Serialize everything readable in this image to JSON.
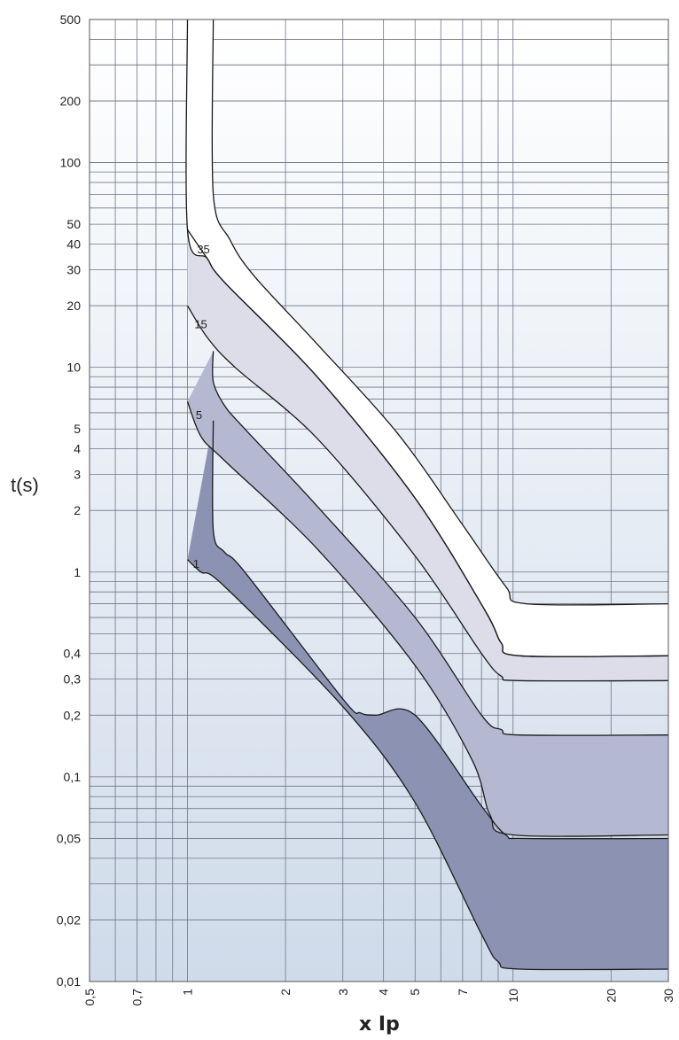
{
  "chart_data": {
    "type": "line",
    "xlabel": "x Ip",
    "ylabel": "t(s)",
    "x_scale": "log",
    "y_scale": "log",
    "xlim": [
      0.5,
      30
    ],
    "ylim": [
      0.01,
      500
    ],
    "grid": true,
    "y_ticks": [
      {
        "v": 500,
        "label": "500"
      },
      {
        "v": 200,
        "label": "200"
      },
      {
        "v": 100,
        "label": "100"
      },
      {
        "v": 50,
        "label": "50"
      },
      {
        "v": 40,
        "label": "40"
      },
      {
        "v": 30,
        "label": "30"
      },
      {
        "v": 20,
        "label": "20"
      },
      {
        "v": 10,
        "label": "10"
      },
      {
        "v": 5,
        "label": "5"
      },
      {
        "v": 4,
        "label": "4"
      },
      {
        "v": 3,
        "label": "3"
      },
      {
        "v": 2,
        "label": "2"
      },
      {
        "v": 1,
        "label": "1"
      },
      {
        "v": 0.4,
        "label": "0,4"
      },
      {
        "v": 0.3,
        "label": "0,3"
      },
      {
        "v": 0.2,
        "label": "0,2"
      },
      {
        "v": 0.1,
        "label": "0,1"
      },
      {
        "v": 0.05,
        "label": "0,05"
      },
      {
        "v": 0.02,
        "label": "0,02"
      },
      {
        "v": 0.01,
        "label": "0,01"
      }
    ],
    "x_ticks": [
      {
        "v": 0.5,
        "label": "0,5"
      },
      {
        "v": 0.7,
        "label": "0,7"
      },
      {
        "v": 1,
        "label": "1"
      },
      {
        "v": 2,
        "label": "2"
      },
      {
        "v": 3,
        "label": "3"
      },
      {
        "v": 4,
        "label": "4"
      },
      {
        "v": 5,
        "label": "5"
      },
      {
        "v": 7,
        "label": "7"
      },
      {
        "v": 10,
        "label": "10"
      },
      {
        "v": 20,
        "label": "20"
      },
      {
        "v": 30,
        "label": "30"
      }
    ],
    "bands": [
      {
        "name": "35",
        "fill": "#ffffff",
        "upper": [
          [
            1.2,
            500
          ],
          [
            1.2,
            70
          ],
          [
            1.35,
            42
          ],
          [
            1.6,
            28
          ],
          [
            2.5,
            13
          ],
          [
            4.4,
            4.8
          ],
          [
            7,
            1.7
          ],
          [
            9.5,
            0.85
          ],
          [
            11,
            0.7
          ],
          [
            30,
            0.7
          ]
        ],
        "lower": [
          [
            1,
            500
          ],
          [
            1,
            47
          ],
          [
            1.15,
            34
          ],
          [
            1.3,
            26
          ],
          [
            2.5,
            9
          ],
          [
            5,
            2.3
          ],
          [
            8.2,
            0.65
          ],
          [
            9.2,
            0.45
          ],
          [
            10.5,
            0.39
          ],
          [
            30,
            0.39
          ]
        ]
      },
      {
        "name": "15",
        "fill": "#dcdde8",
        "upper": [
          [
            1,
            47
          ],
          [
            1.15,
            34
          ],
          [
            1.3,
            26
          ],
          [
            2.5,
            9
          ],
          [
            5,
            2.3
          ],
          [
            8.2,
            0.65
          ],
          [
            9.2,
            0.45
          ],
          [
            10.5,
            0.39
          ],
          [
            30,
            0.39
          ]
        ],
        "lower": [
          [
            1,
            20
          ],
          [
            1.15,
            14
          ],
          [
            1.4,
            10
          ],
          [
            2.5,
            4.5
          ],
          [
            5,
            1.2
          ],
          [
            8,
            0.4
          ],
          [
            9.2,
            0.31
          ],
          [
            10.5,
            0.295
          ],
          [
            30,
            0.295
          ]
        ]
      },
      {
        "name": "5",
        "fill": "#b5b8d1",
        "upper": [
          [
            1.2,
            12
          ],
          [
            1.2,
            8.5
          ],
          [
            1.3,
            6.5
          ],
          [
            1.5,
            5
          ],
          [
            2.5,
            2.1
          ],
          [
            5,
            0.6
          ],
          [
            8,
            0.2
          ],
          [
            9.2,
            0.17
          ],
          [
            10.5,
            0.16
          ],
          [
            30,
            0.16
          ]
        ],
        "lower": [
          [
            1,
            6.8
          ],
          [
            1.1,
            4.6
          ],
          [
            1.3,
            3.5
          ],
          [
            2.5,
            1.3
          ],
          [
            5,
            0.35
          ],
          [
            7.5,
            0.12
          ],
          [
            8.5,
            0.065
          ],
          [
            10,
            0.052
          ],
          [
            30,
            0.052
          ]
        ]
      },
      {
        "name": "1",
        "fill": "#8c92b2",
        "upper": [
          [
            1.2,
            5.5
          ],
          [
            1.2,
            1.6
          ],
          [
            1.3,
            1.25
          ],
          [
            1.5,
            1
          ],
          [
            3,
            0.24
          ],
          [
            3.4,
            0.205
          ],
          [
            3.8,
            0.2
          ],
          [
            5,
            0.2
          ],
          [
            8,
            0.072
          ],
          [
            9.5,
            0.052
          ],
          [
            11,
            0.05
          ],
          [
            30,
            0.05
          ]
        ],
        "lower": [
          [
            1,
            1.15
          ],
          [
            1.1,
            1
          ],
          [
            1.3,
            0.85
          ],
          [
            3,
            0.22
          ],
          [
            5,
            0.075
          ],
          [
            8,
            0.017
          ],
          [
            9,
            0.0125
          ],
          [
            10.5,
            0.0115
          ],
          [
            30,
            0.0115
          ]
        ]
      }
    ]
  }
}
